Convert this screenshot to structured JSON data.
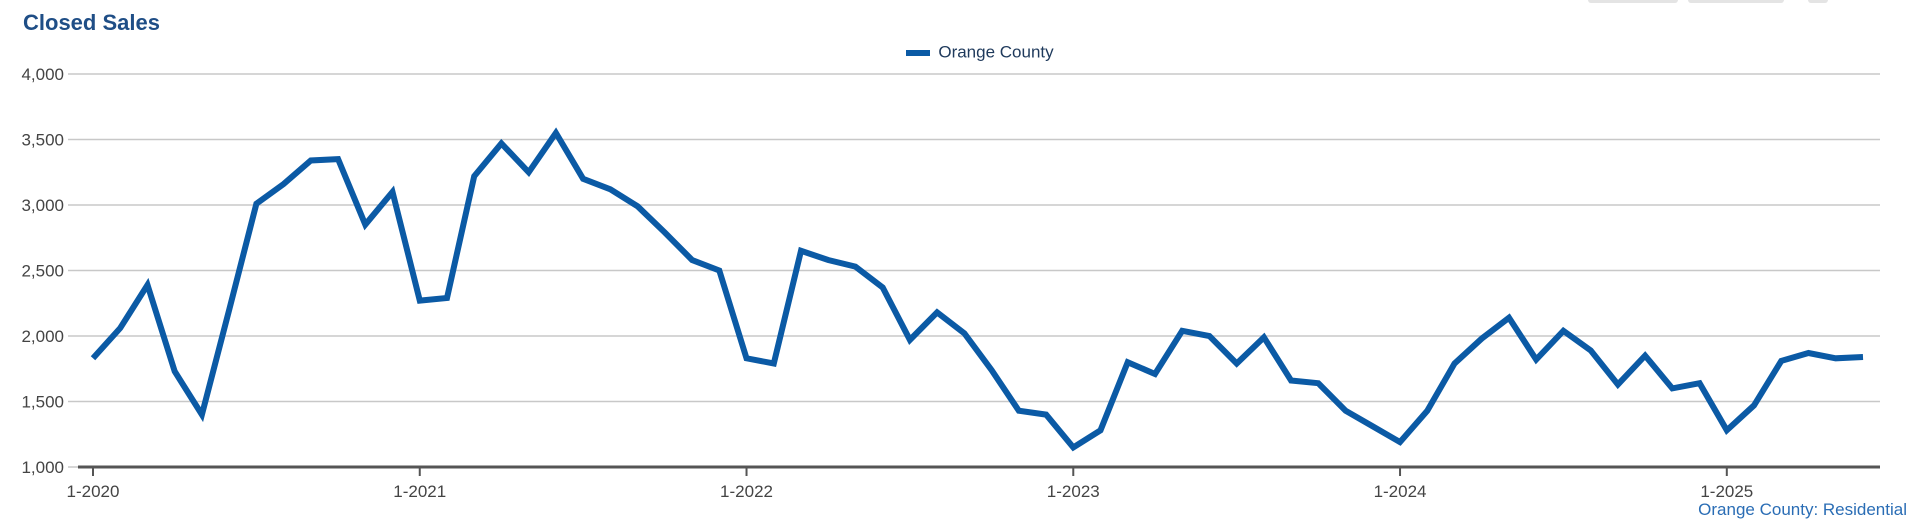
{
  "chart_data": {
    "type": "line",
    "title": "Closed Sales",
    "source_label": "Orange County: Residential",
    "xlabel": "",
    "ylabel": "",
    "ylim": [
      1000,
      4000
    ],
    "y_ticks": [
      1000,
      1500,
      2000,
      2500,
      3000,
      3500,
      4000
    ],
    "y_tick_labels": [
      "1,000",
      "1,500",
      "2,000",
      "2,500",
      "3,000",
      "3,500",
      "4,000"
    ],
    "x_ticks": [
      "1-2020",
      "1-2021",
      "1-2022",
      "1-2023",
      "1-2024",
      "1-2025"
    ],
    "x_start": "2020-01",
    "grid": true,
    "legend_position": "top-center",
    "colors": {
      "series": "#0b5aa5",
      "title": "#1f4e86",
      "grid": "#c8c8c8",
      "axis": "#555555"
    },
    "series": [
      {
        "name": "Orange County",
        "values": [
          1830,
          2060,
          2390,
          1730,
          1400,
          2200,
          3010,
          3160,
          3340,
          3350,
          2850,
          3100,
          2270,
          2290,
          3220,
          3470,
          3250,
          3550,
          3200,
          3120,
          2990,
          2790,
          2580,
          2500,
          1830,
          1790,
          2650,
          2580,
          2530,
          2370,
          1970,
          2180,
          2020,
          1740,
          1430,
          1400,
          1150,
          1280,
          1800,
          1710,
          2040,
          2000,
          1790,
          1990,
          1660,
          1640,
          1430,
          1310,
          1190,
          1430,
          1790,
          1980,
          2140,
          1820,
          2040,
          1890,
          1630,
          1850,
          1600,
          1640,
          1280,
          1470,
          1810,
          1870,
          1830,
          1840
        ]
      }
    ]
  }
}
